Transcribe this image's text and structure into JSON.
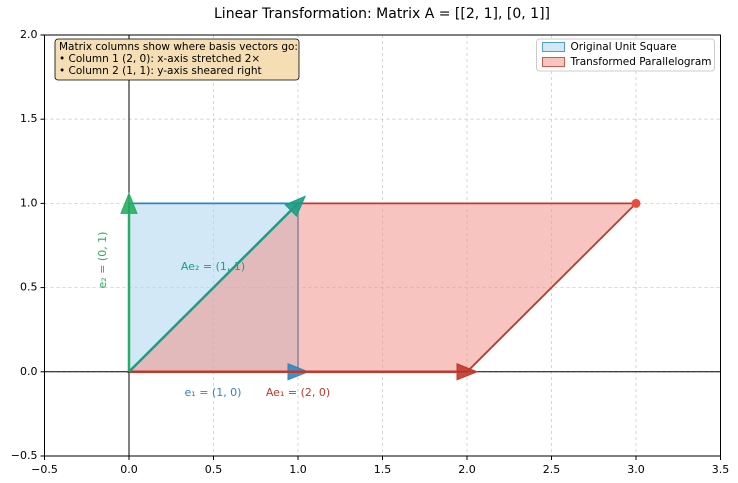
{
  "chart_data": {
    "type": "transformation",
    "title": "Linear Transformation: Matrix A = [[2, 1], [0, 1]]",
    "xlim": [
      -0.5,
      3.5
    ],
    "ylim": [
      -0.5,
      2.0
    ],
    "xticks": [
      {
        "value": -0.5,
        "label": "−0.5"
      },
      {
        "value": 0,
        "label": "0.0"
      },
      0.5,
      {
        "value": 1,
        "label": "1.0"
      },
      1.5,
      {
        "value": 2,
        "label": "2.0"
      },
      2.5,
      {
        "value": 3,
        "label": "3.0"
      },
      3.5
    ],
    "yticks": [
      {
        "value": -0.5,
        "label": "−0.5"
      },
      {
        "value": 0,
        "label": "0.0"
      },
      0.5,
      {
        "value": 1,
        "label": "1.0"
      },
      1.5,
      {
        "value": 2,
        "label": "2.0"
      }
    ],
    "grid": true,
    "legend": "upper right",
    "shapes": [
      {
        "name": "Original Unit Square",
        "fill": "#aed6f1",
        "edge": "#2e86c1",
        "x": [
          0,
          1,
          1,
          0
        ],
        "y": [
          0,
          0,
          1,
          1
        ]
      },
      {
        "name": "Transformed Parallelogram",
        "fill": "#f1948a",
        "edge": "#c0392b",
        "x": [
          0,
          2,
          3,
          1
        ],
        "y": [
          0,
          0,
          1,
          1
        ]
      }
    ],
    "vectors": [
      {
        "label": "e₁ = (1, 0)",
        "color": "#2e86c1",
        "x": 1,
        "y": 0
      },
      {
        "label": "e₂ = (0, 1)",
        "color": "#27ae60",
        "x": 0,
        "y": 1
      },
      {
        "label": "Ae₁ = (2, 0)",
        "color": "#c0392b",
        "x": 2,
        "y": 0
      },
      {
        "label": "Ae₂ = (1, 1)",
        "color": "#16a085",
        "x": 1,
        "y": 1
      }
    ],
    "point": {
      "x": 3,
      "y": 1,
      "color": "#e74c3c"
    },
    "annotation": [
      "Matrix columns show where basis vectors go:",
      "• Column 1 (2, 0): x-axis stretched 2×",
      "• Column 2 (1, 1): y-axis sheared right"
    ]
  }
}
